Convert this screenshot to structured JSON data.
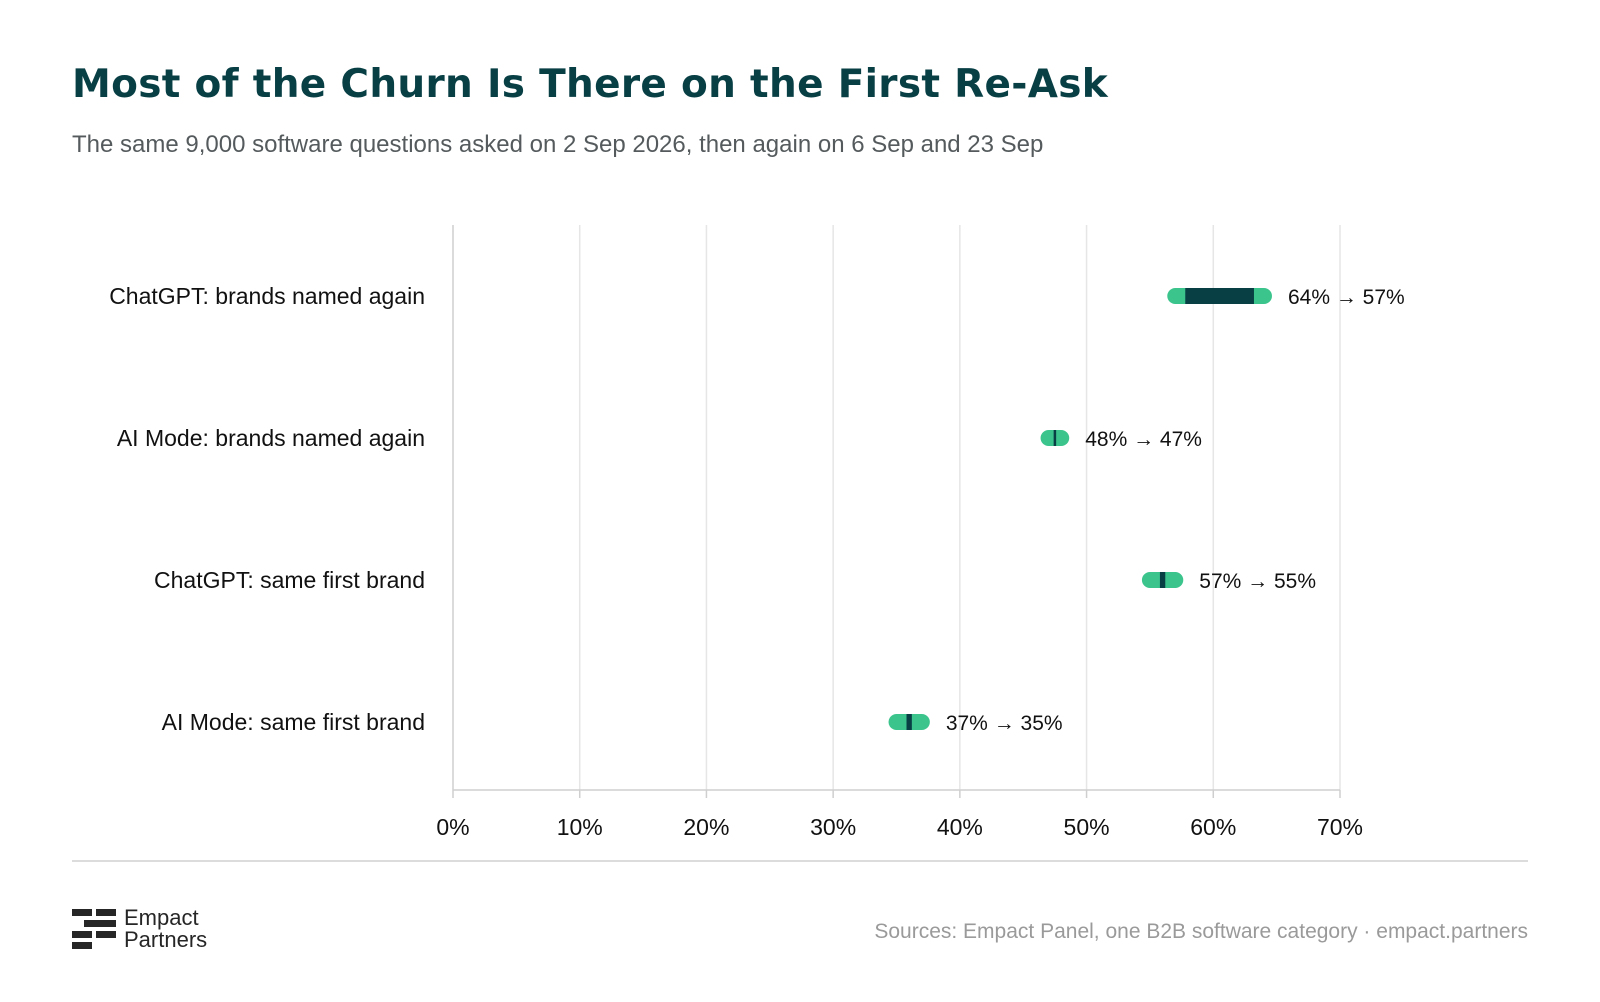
{
  "title": "Most of the Churn Is There on the First Re-Ask",
  "subtitle": "The same 9,000 software questions asked on 2 Sep 2026, then again on 6 Sep and 23 Sep",
  "chart_data": {
    "type": "dumbbell",
    "categories": [
      "ChatGPT: brands named again",
      "AI Mode: brands named again",
      "ChatGPT: same first brand",
      "AI Mode: same first brand"
    ],
    "series": [
      {
        "values": [
          64,
          48,
          57,
          37
        ]
      },
      {
        "values": [
          57,
          47,
          55,
          35
        ]
      }
    ],
    "value_labels": [
      "64% → 57%",
      "48% → 47%",
      "57% → 55%",
      "37% → 35%"
    ],
    "xlim": [
      0,
      70
    ],
    "xticks": [
      0,
      10,
      20,
      30,
      40,
      50,
      60,
      70
    ],
    "tick_labels": [
      "0%",
      "10%",
      "20%",
      "30%",
      "40%",
      "50%",
      "60%",
      "70%"
    ],
    "grid": true,
    "colors": {
      "start": "#073f45",
      "end": "#3cc48d",
      "grid": "#e6e6e6",
      "axis": "#cfcfcf"
    }
  },
  "logo": {
    "line1": "Empact",
    "line2": "Partners"
  },
  "source": "Sources: Empact Panel, one B2B software category · empact.partners"
}
